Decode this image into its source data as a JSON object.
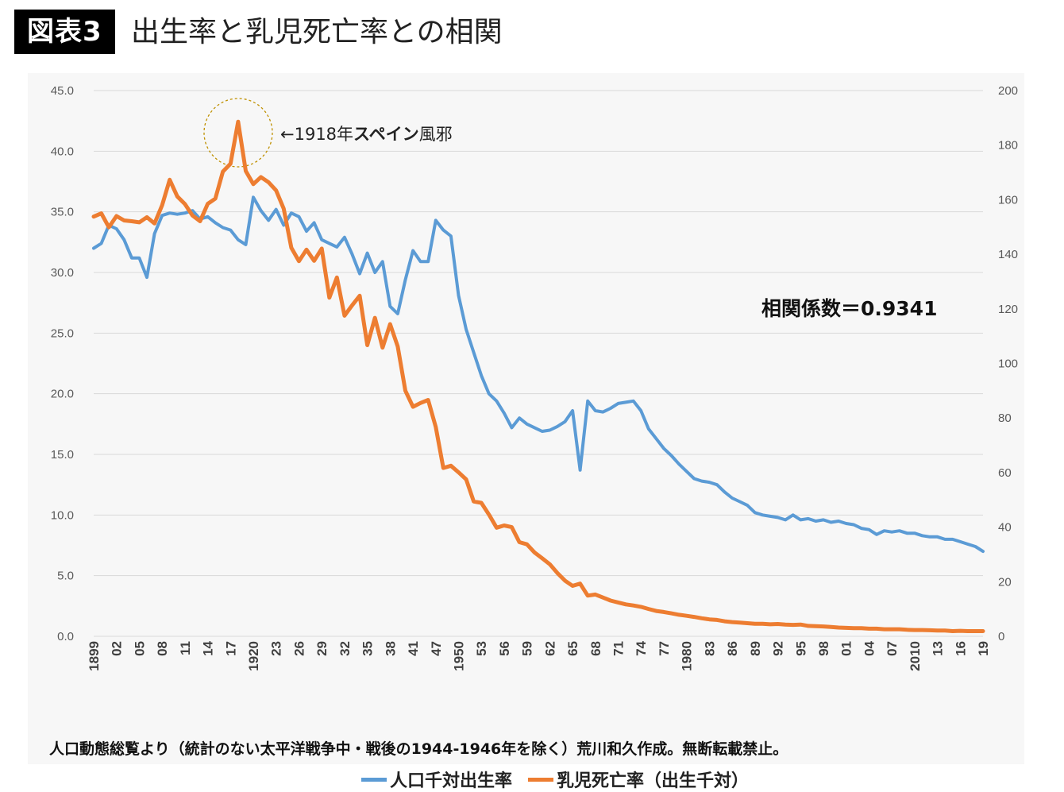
{
  "header": {
    "figure_label": "図表3",
    "title": "出生率と乳児死亡率との相関"
  },
  "annotations": {
    "spanish_flu_arrow": "←1918年",
    "spanish_flu_bold": "スペイン",
    "spanish_flu_tail": "風邪",
    "correlation": "相関係数＝0.9341"
  },
  "legend": {
    "birth_rate": "人口千対出生率",
    "infant_mortality": "乳児死亡率（出生千対）"
  },
  "source_note": "人口動態総覧より（統計のない太平洋戦争中・戦後の1944-1946年を除く）荒川和久作成。無断転載禁止。",
  "colors": {
    "birth_rate": "#5B9BD5",
    "infant_mortality": "#ED7D31",
    "gridline": "#D9D9D9",
    "flu_circle": "#BF9000"
  },
  "chart_data": {
    "type": "line",
    "left_axis": {
      "ylim": [
        0,
        45
      ],
      "ticks": [
        "0.0",
        "5.0",
        "10.0",
        "15.0",
        "20.0",
        "25.0",
        "30.0",
        "35.0",
        "40.0",
        "45.0"
      ]
    },
    "right_axis": {
      "ylim": [
        0,
        200
      ],
      "ticks": [
        "0",
        "20",
        "40",
        "60",
        "80",
        "100",
        "120",
        "140",
        "160",
        "180",
        "200"
      ]
    },
    "x_tick_labels": [
      "1899",
      "02",
      "05",
      "08",
      "11",
      "14",
      "17",
      "1920",
      "23",
      "26",
      "29",
      "32",
      "35",
      "38",
      "41",
      "47",
      "1950",
      "53",
      "56",
      "59",
      "62",
      "65",
      "68",
      "71",
      "74",
      "77",
      "1980",
      "83",
      "86",
      "89",
      "92",
      "95",
      "98",
      "01",
      "04",
      "07",
      "2010",
      "13",
      "16",
      "19"
    ],
    "years": [
      1899,
      1900,
      1901,
      1902,
      1903,
      1904,
      1905,
      1906,
      1907,
      1908,
      1909,
      1910,
      1911,
      1912,
      1913,
      1914,
      1915,
      1916,
      1917,
      1918,
      1919,
      1920,
      1921,
      1922,
      1923,
      1924,
      1925,
      1926,
      1927,
      1928,
      1929,
      1930,
      1931,
      1932,
      1933,
      1934,
      1935,
      1936,
      1937,
      1938,
      1939,
      1940,
      1941,
      1942,
      1943,
      1947,
      1948,
      1949,
      1950,
      1951,
      1952,
      1953,
      1954,
      1955,
      1956,
      1957,
      1958,
      1959,
      1960,
      1961,
      1962,
      1963,
      1964,
      1965,
      1966,
      1967,
      1968,
      1969,
      1970,
      1971,
      1972,
      1973,
      1974,
      1975,
      1976,
      1977,
      1978,
      1979,
      1980,
      1981,
      1982,
      1983,
      1984,
      1985,
      1986,
      1987,
      1988,
      1989,
      1990,
      1991,
      1992,
      1993,
      1994,
      1995,
      1996,
      1997,
      1998,
      1999,
      2000,
      2001,
      2002,
      2003,
      2004,
      2005,
      2006,
      2007,
      2008,
      2009,
      2010,
      2011,
      2012,
      2013,
      2014,
      2015,
      2016,
      2017,
      2018,
      2019
    ],
    "series": [
      {
        "name": "人口千対出生率",
        "axis": "left",
        "values": [
          32.0,
          32.4,
          33.9,
          33.6,
          32.7,
          31.2,
          31.2,
          29.6,
          33.2,
          34.7,
          34.9,
          34.8,
          34.9,
          35.1,
          34.4,
          34.6,
          34.1,
          33.7,
          33.5,
          32.7,
          32.3,
          36.2,
          35.1,
          34.3,
          35.2,
          33.9,
          34.9,
          34.6,
          33.4,
          34.1,
          32.7,
          32.4,
          32.1,
          32.9,
          31.5,
          29.9,
          31.6,
          30.0,
          30.9,
          27.2,
          26.6,
          29.4,
          31.8,
          30.9,
          30.9,
          34.3,
          33.5,
          33.0,
          28.1,
          25.3,
          23.4,
          21.5,
          20.0,
          19.4,
          18.4,
          17.2,
          18.0,
          17.5,
          17.2,
          16.9,
          17.0,
          17.3,
          17.7,
          18.6,
          13.7,
          19.4,
          18.6,
          18.5,
          18.8,
          19.2,
          19.3,
          19.4,
          18.6,
          17.1,
          16.3,
          15.5,
          14.9,
          14.2,
          13.6,
          13.0,
          12.8,
          12.7,
          12.5,
          11.9,
          11.4,
          11.1,
          10.8,
          10.2,
          10.0,
          9.9,
          9.8,
          9.6,
          10.0,
          9.6,
          9.7,
          9.5,
          9.6,
          9.4,
          9.5,
          9.3,
          9.2,
          8.9,
          8.8,
          8.4,
          8.7,
          8.6,
          8.7,
          8.5,
          8.5,
          8.3,
          8.2,
          8.2,
          8.0,
          8.0,
          7.8,
          7.6,
          7.4,
          7.0
        ]
      },
      {
        "name": "乳児死亡率（出生千対）",
        "axis": "right",
        "values": [
          153.8,
          155.0,
          149.9,
          154.0,
          152.4,
          152.1,
          151.7,
          153.6,
          151.3,
          158.0,
          167.3,
          161.2,
          158.4,
          154.2,
          152.1,
          158.5,
          160.4,
          170.3,
          173.2,
          188.6,
          170.5,
          165.7,
          168.3,
          166.4,
          163.4,
          156.7,
          142.4,
          137.5,
          141.7,
          137.6,
          142.1,
          124.1,
          131.5,
          117.5,
          121.3,
          124.8,
          106.7,
          116.7,
          105.8,
          114.4,
          106.2,
          90.0,
          84.1,
          85.5,
          86.6,
          76.7,
          61.7,
          62.5,
          60.1,
          57.5,
          49.4,
          48.9,
          44.6,
          39.8,
          40.6,
          40.0,
          34.5,
          33.7,
          30.7,
          28.6,
          26.4,
          23.2,
          20.4,
          18.5,
          19.3,
          14.9,
          15.3,
          14.2,
          13.1,
          12.4,
          11.7,
          11.3,
          10.8,
          10.0,
          9.3,
          8.9,
          8.4,
          7.9,
          7.5,
          7.1,
          6.6,
          6.2,
          6.0,
          5.5,
          5.2,
          5.0,
          4.8,
          4.6,
          4.6,
          4.4,
          4.5,
          4.3,
          4.2,
          4.3,
          3.8,
          3.7,
          3.6,
          3.4,
          3.2,
          3.1,
          3.0,
          3.0,
          2.8,
          2.8,
          2.6,
          2.6,
          2.6,
          2.4,
          2.3,
          2.3,
          2.2,
          2.1,
          2.1,
          1.9,
          2.0,
          1.9,
          1.9,
          1.9
        ]
      }
    ]
  }
}
